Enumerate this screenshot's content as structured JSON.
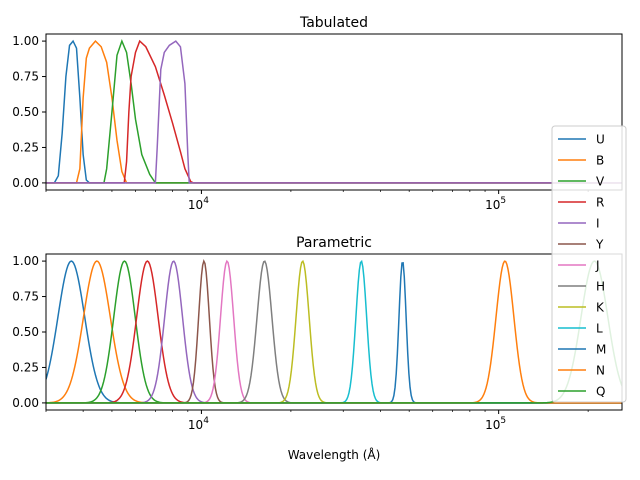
{
  "chart_data": [
    {
      "type": "line",
      "title": "Tabulated",
      "xlabel": "",
      "ylabel": "",
      "xscale": "log",
      "xlim": [
        3000,
        260000
      ],
      "ylim": [
        -0.05,
        1.05
      ],
      "yticks": [
        0.0,
        0.25,
        0.5,
        0.75,
        1.0
      ],
      "ytick_labels": [
        "0.00",
        "0.25",
        "0.50",
        "0.75",
        "1.00"
      ],
      "xticks": [
        10000,
        100000
      ],
      "xtick_labels": [
        "10",
        "10"
      ],
      "xtick_exponents": [
        "4",
        "5"
      ],
      "grid": false,
      "series": [
        {
          "name": "U",
          "color": "#1f77b4",
          "points": [
            [
              3000,
              0
            ],
            [
              3200,
              0
            ],
            [
              3300,
              0.05
            ],
            [
              3400,
              0.35
            ],
            [
              3500,
              0.75
            ],
            [
              3600,
              0.97
            ],
            [
              3700,
              1.0
            ],
            [
              3800,
              0.95
            ],
            [
              3900,
              0.6
            ],
            [
              4000,
              0.2
            ],
            [
              4100,
              0.02
            ],
            [
              4200,
              0
            ],
            [
              260000,
              0
            ]
          ]
        },
        {
          "name": "B",
          "color": "#ff7f0e",
          "points": [
            [
              3000,
              0
            ],
            [
              3800,
              0
            ],
            [
              3900,
              0.1
            ],
            [
              4000,
              0.6
            ],
            [
              4100,
              0.88
            ],
            [
              4200,
              0.95
            ],
            [
              4400,
              1.0
            ],
            [
              4600,
              0.96
            ],
            [
              4800,
              0.85
            ],
            [
              5000,
              0.6
            ],
            [
              5200,
              0.3
            ],
            [
              5400,
              0.08
            ],
            [
              5600,
              0
            ],
            [
              260000,
              0
            ]
          ]
        },
        {
          "name": "V",
          "color": "#2ca02c",
          "points": [
            [
              3000,
              0
            ],
            [
              4700,
              0
            ],
            [
              4800,
              0.1
            ],
            [
              5000,
              0.5
            ],
            [
              5200,
              0.9
            ],
            [
              5400,
              1.0
            ],
            [
              5600,
              0.92
            ],
            [
              5800,
              0.7
            ],
            [
              6000,
              0.45
            ],
            [
              6300,
              0.2
            ],
            [
              6700,
              0.06
            ],
            [
              7000,
              0
            ],
            [
              260000,
              0
            ]
          ]
        },
        {
          "name": "R",
          "color": "#d62728",
          "points": [
            [
              3000,
              0
            ],
            [
              5500,
              0
            ],
            [
              5600,
              0.15
            ],
            [
              5700,
              0.5
            ],
            [
              5800,
              0.75
            ],
            [
              6000,
              0.92
            ],
            [
              6200,
              1.0
            ],
            [
              6500,
              0.96
            ],
            [
              7000,
              0.82
            ],
            [
              7500,
              0.62
            ],
            [
              8000,
              0.42
            ],
            [
              8500,
              0.22
            ],
            [
              8800,
              0.1
            ],
            [
              9200,
              0.01
            ],
            [
              9400,
              0
            ],
            [
              260000,
              0
            ]
          ]
        },
        {
          "name": "I",
          "color": "#9467bd",
          "points": [
            [
              3000,
              0
            ],
            [
              7000,
              0
            ],
            [
              7100,
              0.25
            ],
            [
              7300,
              0.8
            ],
            [
              7500,
              0.92
            ],
            [
              7800,
              0.97
            ],
            [
              8200,
              1.0
            ],
            [
              8500,
              0.96
            ],
            [
              8800,
              0.7
            ],
            [
              9000,
              0.2
            ],
            [
              9100,
              0
            ],
            [
              260000,
              0
            ]
          ]
        }
      ]
    },
    {
      "type": "line",
      "title": "Parametric",
      "xlabel": "Wavelength (Å)",
      "ylabel": "",
      "xscale": "log",
      "xlim": [
        3000,
        260000
      ],
      "ylim": [
        -0.05,
        1.05
      ],
      "yticks": [
        0.0,
        0.25,
        0.5,
        0.75,
        1.0
      ],
      "ytick_labels": [
        "0.00",
        "0.25",
        "0.50",
        "0.75",
        "1.00"
      ],
      "xticks": [
        10000,
        100000
      ],
      "xtick_labels": [
        "10",
        "10"
      ],
      "xtick_exponents": [
        "4",
        "5"
      ],
      "grid": false,
      "legend_position": "right",
      "series": [
        {
          "name": "U",
          "color": "#1f77b4",
          "center": 3650,
          "log_sigma": 0.045
        },
        {
          "name": "B",
          "color": "#ff7f0e",
          "center": 4450,
          "log_sigma": 0.045
        },
        {
          "name": "V",
          "color": "#2ca02c",
          "center": 5510,
          "log_sigma": 0.036
        },
        {
          "name": "R",
          "color": "#d62728",
          "center": 6580,
          "log_sigma": 0.036
        },
        {
          "name": "I",
          "color": "#9467bd",
          "center": 8060,
          "log_sigma": 0.03
        },
        {
          "name": "Y",
          "color": "#8c564b",
          "center": 10200,
          "log_sigma": 0.018
        },
        {
          "name": "J",
          "color": "#e377c2",
          "center": 12200,
          "log_sigma": 0.022
        },
        {
          "name": "H",
          "color": "#7f7f7f",
          "center": 16300,
          "log_sigma": 0.025
        },
        {
          "name": "K",
          "color": "#bcbd22",
          "center": 21900,
          "log_sigma": 0.022
        },
        {
          "name": "L",
          "color": "#17becf",
          "center": 34500,
          "log_sigma": 0.018
        },
        {
          "name": "M",
          "color": "#1f77b4",
          "center": 47500,
          "log_sigma": 0.012
        },
        {
          "name": "N",
          "color": "#ff7f0e",
          "center": 105000,
          "log_sigma": 0.03
        },
        {
          "name": "Q",
          "color": "#2ca02c",
          "center": 210000,
          "log_sigma": 0.045
        }
      ]
    }
  ]
}
